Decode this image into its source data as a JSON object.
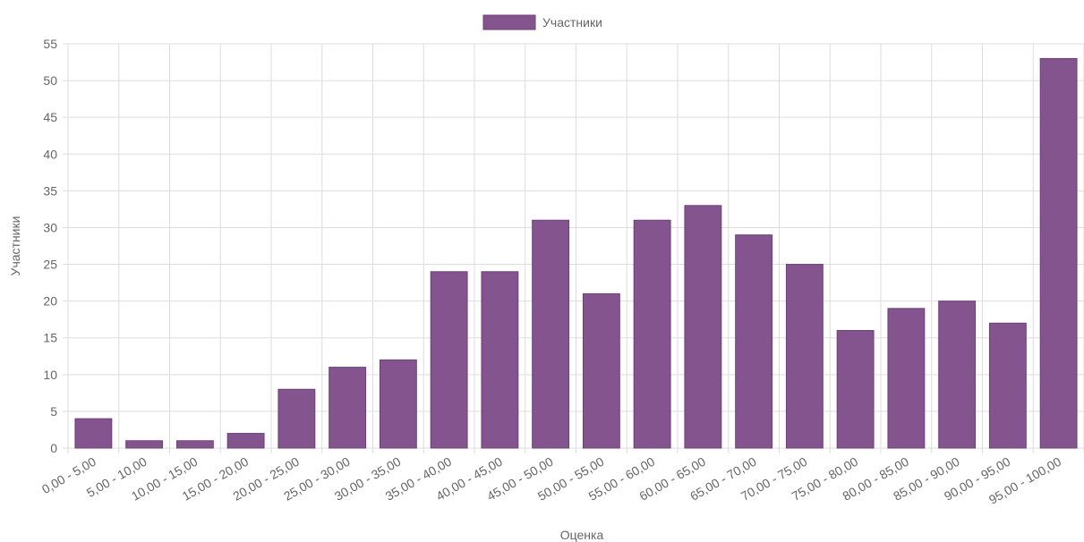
{
  "chart_data": {
    "type": "bar",
    "legend": "Участники",
    "y_label": "Участники",
    "x_label": "Оценка",
    "categories": [
      "0,00 - 5,00",
      "5,00 - 10,00",
      "10,00 - 15,00",
      "15,00 - 20,00",
      "20,00 - 25,00",
      "25,00 - 30,00",
      "30,00 - 35,00",
      "35,00 - 40,00",
      "40,00 - 45,00",
      "45,00 - 50,00",
      "50,00 - 55,00",
      "55,00 - 60,00",
      "60,00 - 65,00",
      "65,00 - 70,00",
      "70,00 - 75,00",
      "75,00 - 80,00",
      "80,00 - 85,00",
      "85,00 - 90,00",
      "90,00 - 95,00",
      "95,00 - 100,00"
    ],
    "values": [
      4,
      1,
      1,
      2,
      8,
      11,
      12,
      24,
      24,
      31,
      21,
      31,
      33,
      29,
      25,
      16,
      19,
      20,
      17,
      53
    ],
    "color": "#84548f",
    "ylim": [
      0,
      55
    ],
    "yticks": [
      0,
      5,
      10,
      15,
      20,
      25,
      30,
      35,
      40,
      45,
      50,
      55
    ],
    "grid": true
  }
}
